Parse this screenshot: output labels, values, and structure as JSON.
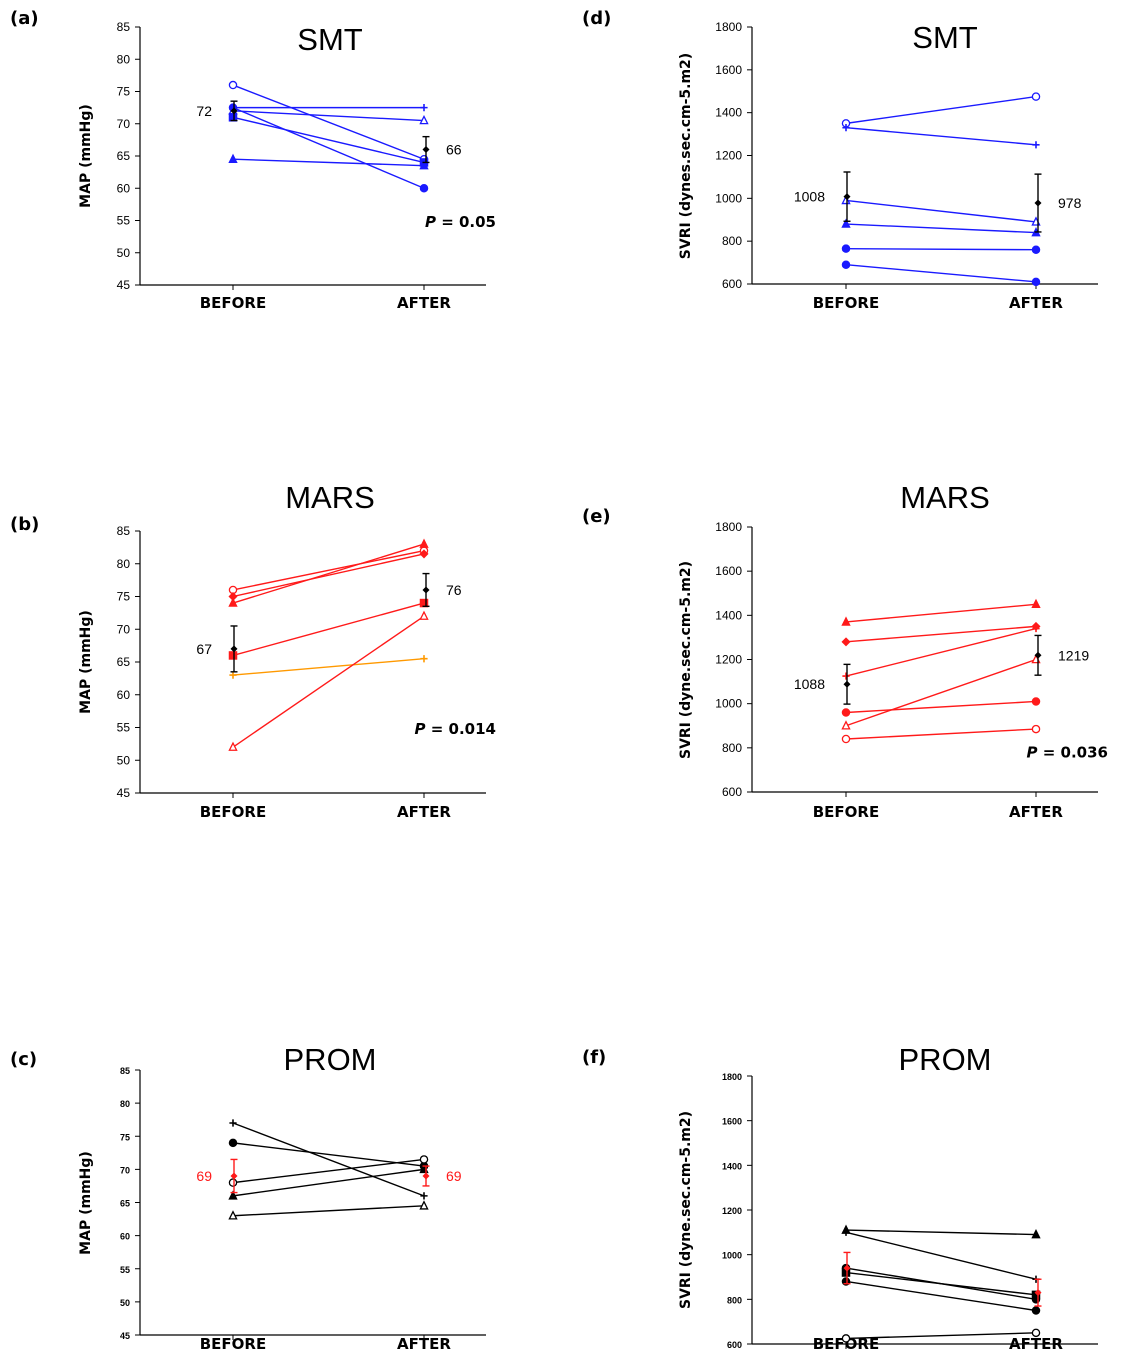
{
  "chart_data": [
    {
      "type": "line",
      "panel_label": "(a)",
      "title": "SMT",
      "ylabel": "MAP (mmHg)",
      "categories": [
        "BEFORE",
        "AFTER"
      ],
      "ylim": [
        45,
        85
      ],
      "yticks": [
        45,
        50,
        55,
        60,
        65,
        70,
        75,
        80,
        85
      ],
      "tick_style": "normal",
      "line_color": "#1a1aff",
      "series": [
        {
          "values": [
            76,
            64.5
          ],
          "marker": "circle-open"
        },
        {
          "values": [
            72.5,
            72.5
          ],
          "marker": "plus"
        },
        {
          "values": [
            72,
            70.5
          ],
          "marker": "triangle-open"
        },
        {
          "values": [
            72.5,
            60
          ],
          "marker": "circle"
        },
        {
          "values": [
            71,
            64
          ],
          "marker": "square"
        },
        {
          "values": [
            64.5,
            63.5
          ],
          "marker": "triangle"
        }
      ],
      "mean": {
        "values": [
          72,
          66
        ],
        "err": [
          1.5,
          2
        ],
        "color": "#000000",
        "labels": [
          "72",
          "66"
        ],
        "label_color": "#000000"
      },
      "p_value": "= 0.05"
    },
    {
      "type": "line",
      "panel_label": "(b)",
      "title": "MARS",
      "ylabel": "MAP (mmHg)",
      "categories": [
        "BEFORE",
        "AFTER"
      ],
      "ylim": [
        45,
        85
      ],
      "yticks": [
        45,
        50,
        55,
        60,
        65,
        70,
        75,
        80,
        85
      ],
      "tick_style": "normal",
      "line_color": "#ff1a1a",
      "series": [
        {
          "values": [
            76,
            82
          ],
          "marker": "circle-open"
        },
        {
          "values": [
            75,
            81.5
          ],
          "marker": "diamond"
        },
        {
          "values": [
            74,
            83
          ],
          "marker": "triangle"
        },
        {
          "values": [
            66,
            74
          ],
          "marker": "square"
        },
        {
          "values": [
            63,
            65.5
          ],
          "marker": "plus",
          "color": "#ff9900"
        },
        {
          "values": [
            52,
            72
          ],
          "marker": "triangle-open"
        }
      ],
      "mean": {
        "values": [
          67,
          76
        ],
        "err": [
          3.5,
          2.5
        ],
        "color": "#000000",
        "labels": [
          "67",
          "76"
        ],
        "label_color": "#000000"
      },
      "p_value": "= 0.014"
    },
    {
      "type": "line",
      "panel_label": "(c)",
      "title": "PROM",
      "ylabel": "MAP (mmHg)",
      "categories": [
        "BEFORE",
        "AFTER"
      ],
      "ylim": [
        45,
        85
      ],
      "yticks": [
        45,
        50,
        55,
        60,
        65,
        70,
        75,
        80,
        85
      ],
      "tick_style": "small",
      "line_color": "#000000",
      "series": [
        {
          "values": [
            77,
            66
          ],
          "marker": "plus"
        },
        {
          "values": [
            74,
            70.5
          ],
          "marker": "circle"
        },
        {
          "values": [
            68,
            71.5
          ],
          "marker": "circle-open"
        },
        {
          "values": [
            66,
            70
          ],
          "marker": "triangle"
        },
        {
          "values": [
            63,
            64.5
          ],
          "marker": "triangle-open"
        }
      ],
      "mean": {
        "values": [
          69,
          69
        ],
        "err": [
          2.5,
          1.5
        ],
        "color": "#ff1a1a",
        "labels": [
          "69",
          "69"
        ],
        "label_color": "#ff1a1a"
      },
      "p_value": ""
    },
    {
      "type": "line",
      "panel_label": "(d)",
      "title": "SMT",
      "ylabel": "SVRI (dynes.sec.cm-5.m2)",
      "categories": [
        "BEFORE",
        "AFTER"
      ],
      "ylim": [
        600,
        1800
      ],
      "yticks": [
        600,
        800,
        1000,
        1200,
        1400,
        1600,
        1800
      ],
      "tick_style": "normal",
      "line_color": "#1a1aff",
      "series": [
        {
          "values": [
            1350,
            1475
          ],
          "marker": "circle-open"
        },
        {
          "values": [
            1330,
            1250
          ],
          "marker": "plus"
        },
        {
          "values": [
            990,
            890
          ],
          "marker": "triangle-open"
        },
        {
          "values": [
            880,
            840
          ],
          "marker": "triangle"
        },
        {
          "values": [
            765,
            760
          ],
          "marker": "circle"
        },
        {
          "values": [
            690,
            610
          ],
          "marker": "circle"
        }
      ],
      "mean": {
        "values": [
          1008,
          978
        ],
        "err": [
          115,
          135
        ],
        "color": "#000000",
        "labels": [
          "1008",
          "978"
        ],
        "label_color": "#000000"
      },
      "p_value": ""
    },
    {
      "type": "line",
      "panel_label": "(e)",
      "title": "MARS",
      "ylabel": "SVRI (dyne.sec.cm-5.m2)",
      "categories": [
        "BEFORE",
        "AFTER"
      ],
      "ylim": [
        600,
        1800
      ],
      "yticks": [
        600,
        800,
        1000,
        1200,
        1400,
        1600,
        1800
      ],
      "tick_style": "normal",
      "line_color": "#ff1a1a",
      "series": [
        {
          "values": [
            1370,
            1450
          ],
          "marker": "triangle"
        },
        {
          "values": [
            1280,
            1350
          ],
          "marker": "diamond"
        },
        {
          "values": [
            1125,
            1340
          ],
          "marker": "plus"
        },
        {
          "values": [
            960,
            1010
          ],
          "marker": "circle"
        },
        {
          "values": [
            900,
            1200
          ],
          "marker": "triangle-open"
        },
        {
          "values": [
            840,
            885
          ],
          "marker": "circle-open"
        }
      ],
      "mean": {
        "values": [
          1088,
          1219
        ],
        "err": [
          90,
          90
        ],
        "color": "#000000",
        "labels": [
          "1088",
          "1219"
        ],
        "label_color": "#000000"
      },
      "p_value": "= 0.036"
    },
    {
      "type": "line",
      "panel_label": "(f)",
      "title": "PROM",
      "ylabel": "SVRI (dyne.sec.cm-5.m2)",
      "categories": [
        "BEFORE",
        "AFTER"
      ],
      "ylim": [
        600,
        1800
      ],
      "yticks": [
        600,
        800,
        1000,
        1200,
        1400,
        1600,
        1800
      ],
      "tick_style": "small",
      "line_color": "#000000",
      "series": [
        {
          "values": [
            1110,
            1090
          ],
          "marker": "triangle"
        },
        {
          "values": [
            1100,
            890
          ],
          "marker": "plus"
        },
        {
          "values": [
            940,
            800
          ],
          "marker": "circle"
        },
        {
          "values": [
            920,
            820
          ],
          "marker": "square"
        },
        {
          "values": [
            880,
            750
          ],
          "marker": "circle"
        },
        {
          "values": [
            625,
            650
          ],
          "marker": "circle-open"
        }
      ],
      "mean": {
        "values": [
          940,
          830
        ],
        "err": [
          70,
          60
        ],
        "color": "#ff1a1a",
        "labels": [
          "",
          ""
        ],
        "label_color": "#ff1a1a"
      },
      "p_value": ""
    }
  ]
}
